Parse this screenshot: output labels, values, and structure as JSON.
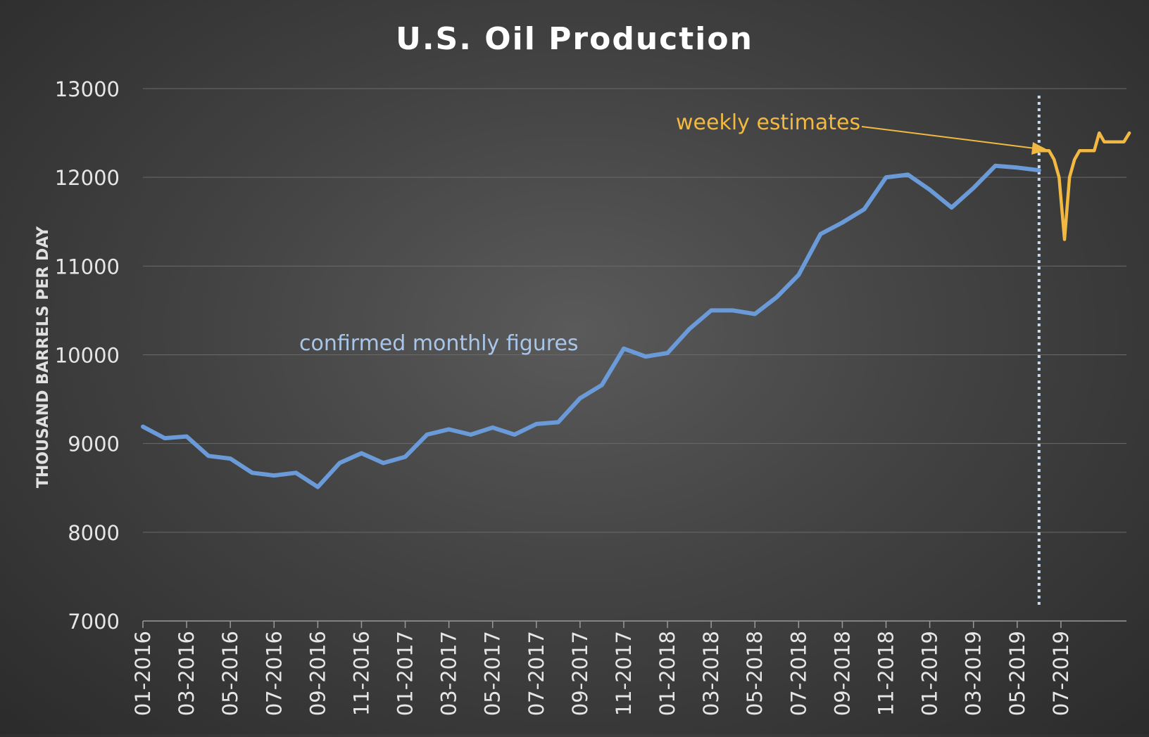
{
  "chart_data": {
    "type": "line",
    "title": "U.S. Oil Production",
    "xlabel": "",
    "ylabel": "THOUSAND BARRELS PER DAY",
    "ylim": [
      7000,
      13000
    ],
    "y_ticks": [
      7000,
      8000,
      9000,
      10000,
      11000,
      12000,
      13000
    ],
    "grid": true,
    "x_tick_labels": [
      "01-2016",
      "03-2016",
      "05-2016",
      "07-2016",
      "09-2016",
      "11-2016",
      "01-2017",
      "03-2017",
      "05-2017",
      "07-2017",
      "09-2017",
      "11-2017",
      "01-2018",
      "03-2018",
      "05-2018",
      "07-2018",
      "09-2018",
      "11-2018",
      "01-2019",
      "03-2019",
      "05-2019",
      "07-2019"
    ],
    "x_min": "2016-01",
    "x_max": "2019-10",
    "series": [
      {
        "color": "#6a9bd8",
        "x": [
          "2016-01",
          "2016-02",
          "2016-03",
          "2016-04",
          "2016-05",
          "2016-06",
          "2016-07",
          "2016-08",
          "2016-09",
          "2016-10",
          "2016-11",
          "2016-12",
          "2017-01",
          "2017-02",
          "2017-03",
          "2017-04",
          "2017-05",
          "2017-06",
          "2017-07",
          "2017-08",
          "2017-09",
          "2017-10",
          "2017-11",
          "2017-12",
          "2018-01",
          "2018-02",
          "2018-03",
          "2018-04",
          "2018-05",
          "2018-06",
          "2018-07",
          "2018-08",
          "2018-09",
          "2018-10",
          "2018-11",
          "2018-12",
          "2019-01",
          "2019-02",
          "2019-03",
          "2019-04",
          "2019-05",
          "2019-06"
        ],
        "values": [
          9190,
          9060,
          9080,
          8860,
          8830,
          8670,
          8640,
          8670,
          8510,
          8780,
          8890,
          8780,
          8850,
          9100,
          9160,
          9100,
          9180,
          9100,
          9220,
          9240,
          9510,
          9660,
          10070,
          9980,
          10020,
          10290,
          10500,
          10500,
          10460,
          10650,
          10900,
          11360,
          11490,
          11640,
          12000,
          12030,
          11860,
          11660,
          11880,
          12130,
          12110,
          12080
        ]
      },
      {
        "color": "#f2b942",
        "x": [
          "2019-06-01",
          "2019-06-08",
          "2019-06-15",
          "2019-06-22",
          "2019-06-29",
          "2019-07-06",
          "2019-07-13",
          "2019-07-20",
          "2019-07-27",
          "2019-08-03",
          "2019-08-10",
          "2019-08-17",
          "2019-08-24",
          "2019-08-31",
          "2019-09-07",
          "2019-09-14",
          "2019-09-21",
          "2019-09-28",
          "2019-10-05"
        ],
        "values": [
          12300,
          12300,
          12300,
          12200,
          12000,
          11300,
          12000,
          12200,
          12300,
          12300,
          12300,
          12300,
          12500,
          12400,
          12400,
          12400,
          12400,
          12400,
          12500
        ]
      }
    ],
    "divider_x": "2019-06-01",
    "annotations": [
      {
        "text": "weekly estimates",
        "color": "#f2b942"
      },
      {
        "text": "confirmed monthly figures",
        "color": "#a8c6ea"
      }
    ],
    "colors": {
      "gridline": "#6a6a6a",
      "axis_text": "#e6e6e6",
      "divider": "#c9dcee"
    }
  }
}
